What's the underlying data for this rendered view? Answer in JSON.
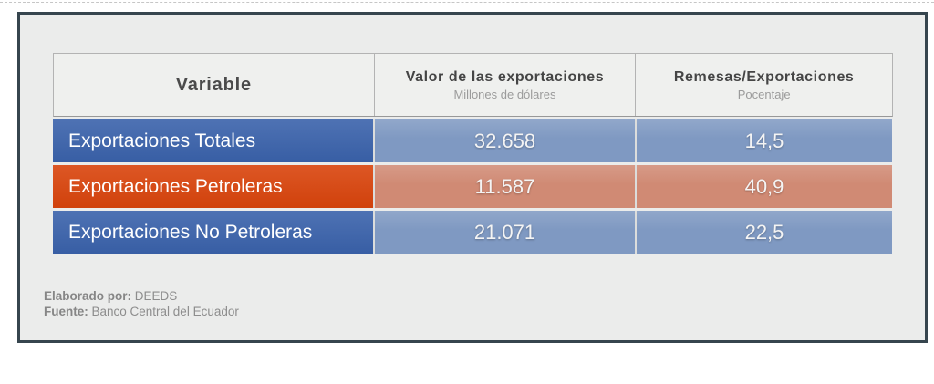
{
  "table": {
    "columns": [
      {
        "label": "Variable",
        "sublabel": ""
      },
      {
        "label": "Valor de las exportaciones",
        "sublabel": "Millones de dólares"
      },
      {
        "label": "Remesas/Exportaciones",
        "sublabel": "Pocentaje"
      }
    ],
    "rows": [
      {
        "variable": "Exportaciones Totales",
        "valor": "32.658",
        "remesas": "14,5",
        "theme": "blue"
      },
      {
        "variable": "Exportaciones Petroleras",
        "valor": "11.587",
        "remesas": "40,9",
        "theme": "orange"
      },
      {
        "variable": "Exportaciones No Petroleras",
        "valor": "21.071",
        "remesas": "22,5",
        "theme": "blue"
      }
    ]
  },
  "footer": {
    "elaborado_label": "Elaborado por:",
    "elaborado_value": " DEEDS",
    "fuente_label": "Fuente:",
    "fuente_value": " Banco Central del Ecuador"
  },
  "colors": {
    "blue_label": "#3a62ab",
    "blue_value": "#7f99c2",
    "orange_label": "#d9440c",
    "orange_value": "#d08a74",
    "card_background": "#ebeceb",
    "card_border": "#36454e",
    "header_background": "#eff0ee",
    "header_text": "#4b4b4b",
    "header_subtext": "#9b9b9b",
    "footer_text": "#8d8d8d"
  },
  "chart_data": {
    "type": "table",
    "title": "",
    "columns": [
      "Variable",
      "Valor de las exportaciones (Millones de dólares)",
      "Remesas/Exportaciones (Pocentaje)"
    ],
    "rows": [
      [
        "Exportaciones Totales",
        32658,
        14.5
      ],
      [
        "Exportaciones Petroleras",
        11587,
        40.9
      ],
      [
        "Exportaciones No Petroleras",
        21071,
        22.5
      ]
    ],
    "notes": [
      "Elaborado por: DEEDS",
      "Fuente: Banco Central del Ecuador"
    ],
    "legend_position": "none",
    "grid": false
  }
}
